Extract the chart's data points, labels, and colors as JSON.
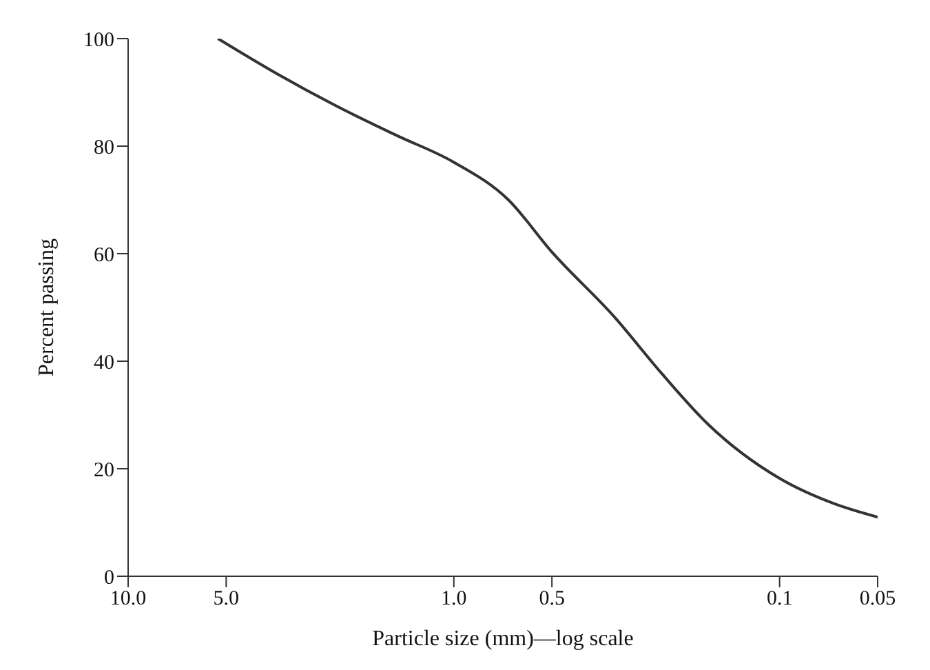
{
  "chart_data": {
    "type": "line",
    "xlabel": "Particle size (mm)—log scale",
    "ylabel": "Percent passing",
    "log": "x",
    "xlim": [
      10,
      0.05
    ],
    "xticks": [
      {
        "value": 10,
        "label": "10.0"
      },
      {
        "value": 5,
        "label": "5.0"
      },
      {
        "value": 1,
        "label": "1.0"
      },
      0.5,
      0.1,
      0.05
    ],
    "ylim": [
      0,
      100
    ],
    "yticks": [
      0,
      20,
      40,
      60,
      80,
      100
    ],
    "marker": "none",
    "line_style": "solid",
    "series": [
      {
        "color": "#333333",
        "x": [
          5.3,
          3.5,
          2.3,
          1.5,
          1,
          0.68,
          0.5,
          0.32,
          0.23,
          0.166,
          0.1,
          0.068,
          0.05
        ],
        "values": [
          100,
          93.5,
          87.5,
          82,
          77,
          70,
          60.3,
          48.1,
          37.7,
          28.3,
          18.2,
          13.5,
          11
        ]
      }
    ]
  }
}
